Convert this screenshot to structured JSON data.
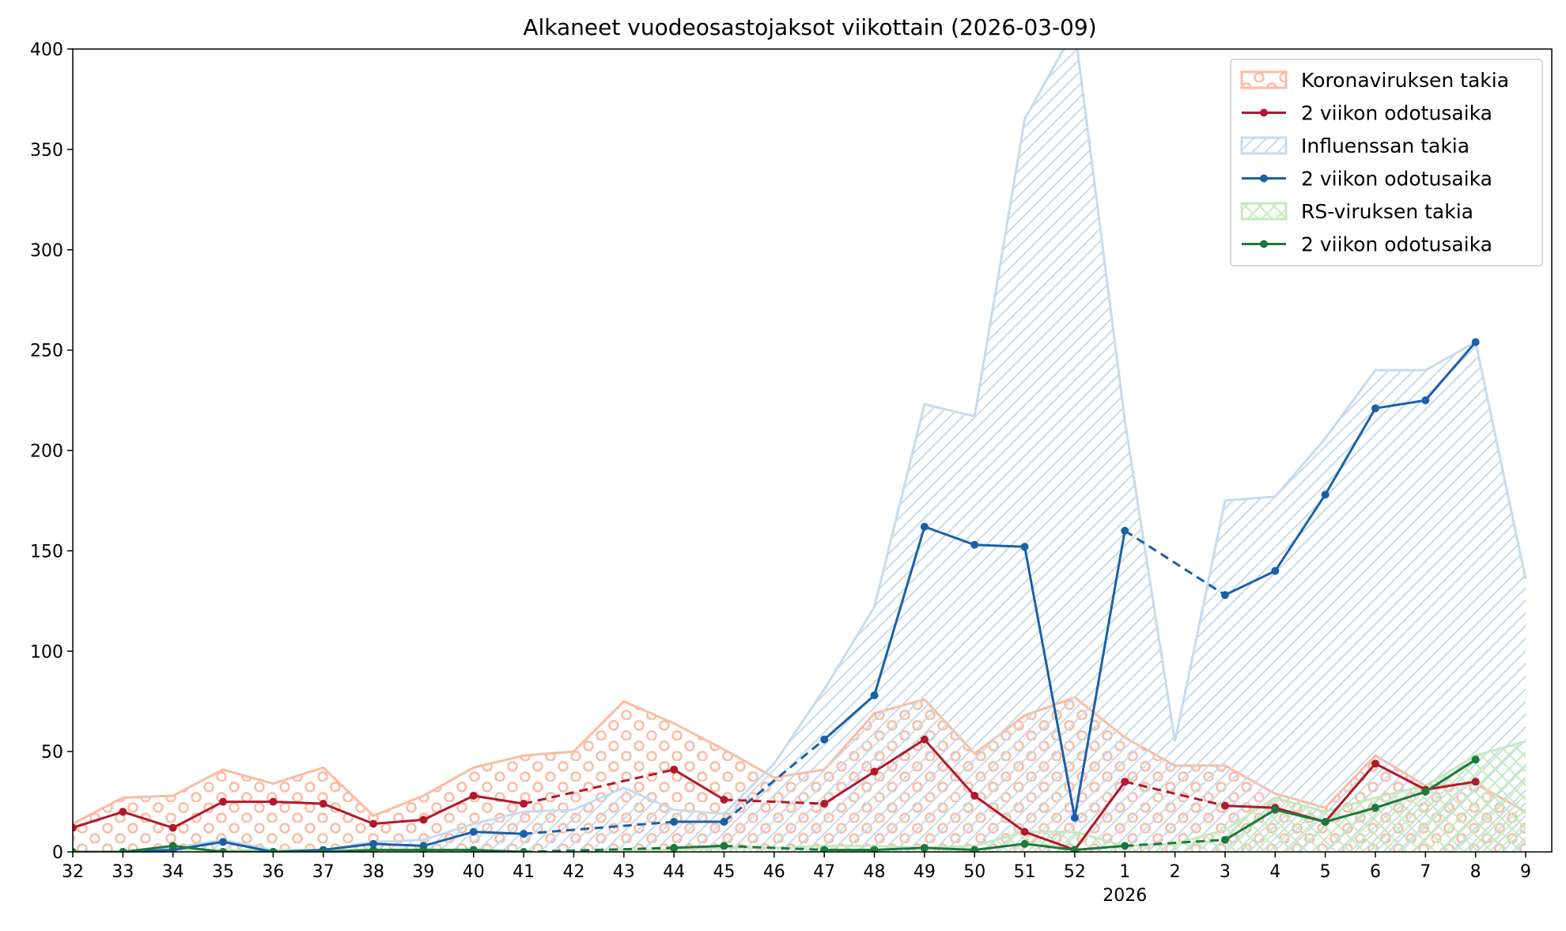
{
  "chart_data": {
    "type": "area",
    "title": "Alkaneet vuodeosastojaksot viikottain (2026-03-09)",
    "x_ticks": [
      "32",
      "33",
      "34",
      "35",
      "36",
      "37",
      "38",
      "39",
      "40",
      "41",
      "42",
      "43",
      "44",
      "45",
      "46",
      "47",
      "48",
      "49",
      "50",
      "51",
      "52",
      "1",
      "2",
      "3",
      "4",
      "5",
      "6",
      "7",
      "8",
      "9"
    ],
    "x_year_label": "2026",
    "y_ticks": [
      "0",
      "50",
      "100",
      "150",
      "200",
      "250",
      "300",
      "350",
      "400"
    ],
    "ylim": [
      0,
      400
    ],
    "xlabel": "",
    "ylabel": "",
    "legend_position": "top-right",
    "series": [
      {
        "name": "Koronaviruksen takia",
        "kind": "area",
        "pattern": "circles",
        "color": "#fcbba1",
        "values": [
          14,
          27,
          28,
          41,
          34,
          42,
          18,
          28,
          42,
          48,
          50,
          75,
          64,
          51,
          37,
          41,
          69,
          76,
          49,
          68,
          77,
          57,
          43,
          43,
          29,
          22,
          48,
          33,
          34,
          20
        ]
      },
      {
        "name": "2 viikon odotusaika",
        "kind": "line",
        "color": "#b2182b",
        "values": [
          12,
          20,
          12,
          25,
          25,
          24,
          14,
          16,
          28,
          24,
          null,
          null,
          41,
          26,
          null,
          24,
          40,
          56,
          28,
          10,
          1,
          35,
          null,
          23,
          22,
          15,
          44,
          31,
          35,
          null
        ],
        "dashed_bridges": [
          [
            9,
            12
          ],
          [
            13,
            15
          ],
          [
            21,
            23
          ]
        ]
      },
      {
        "name": "Influenssan takia",
        "kind": "area",
        "pattern": "diagonal",
        "color": "#c6dbef",
        "values": [
          0,
          0,
          2,
          6,
          1,
          1,
          5,
          6,
          14,
          20,
          21,
          32,
          21,
          19,
          44,
          81,
          122,
          223,
          217,
          365,
          410,
          215,
          55,
          175,
          177,
          206,
          240,
          240,
          254,
          136
        ]
      },
      {
        "name": "2 viikon odotusaika",
        "kind": "line",
        "color": "#1a60a8",
        "values": [
          0,
          0,
          1,
          5,
          0,
          1,
          4,
          3,
          10,
          9,
          null,
          null,
          15,
          15,
          null,
          56,
          78,
          162,
          153,
          152,
          17,
          160,
          null,
          128,
          140,
          178,
          221,
          225,
          254,
          null
        ],
        "dashed_bridges": [
          [
            9,
            12
          ],
          [
            13,
            15
          ],
          [
            21,
            23
          ]
        ]
      },
      {
        "name": "RS-viruksen takia",
        "kind": "area",
        "pattern": "cross",
        "color": "#c7e9c0",
        "values": [
          0,
          0,
          1,
          1,
          1,
          1,
          1,
          1,
          1,
          0,
          0,
          1,
          1,
          2,
          2,
          3,
          3,
          2,
          3,
          10,
          10,
          3,
          4,
          11,
          27,
          20,
          27,
          33,
          48,
          55
        ]
      },
      {
        "name": "2 viikon odotusaika",
        "kind": "line",
        "color": "#1a7a3c",
        "values": [
          0,
          0,
          3,
          0,
          0,
          0,
          1,
          1,
          1,
          0,
          null,
          null,
          2,
          3,
          null,
          1,
          1,
          2,
          1,
          4,
          1,
          3,
          null,
          6,
          21,
          15,
          22,
          30,
          46,
          null
        ],
        "dashed_bridges": [
          [
            9,
            12
          ],
          [
            13,
            15
          ],
          [
            21,
            23
          ]
        ]
      }
    ]
  }
}
